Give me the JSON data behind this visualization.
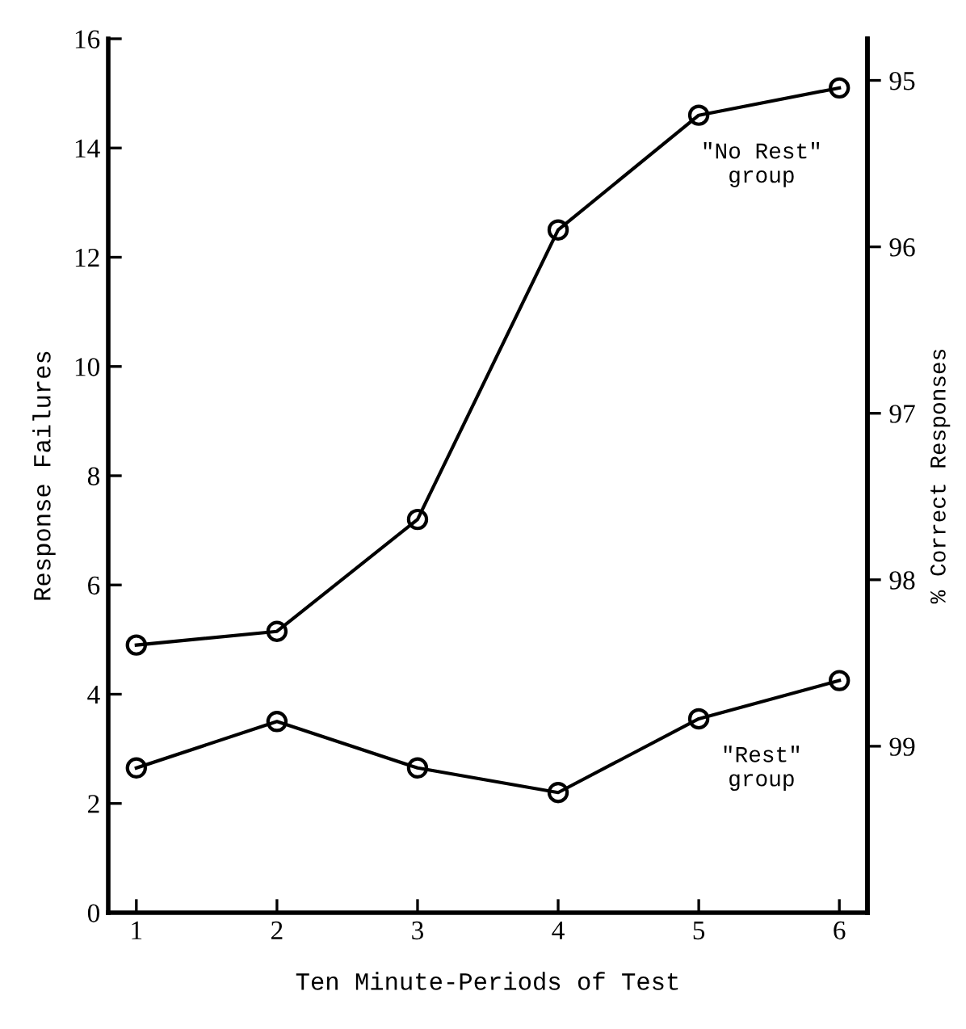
{
  "chart_data": {
    "type": "line",
    "xlabel": "Ten Minute-Periods of Test",
    "ylabel": "Response Failures",
    "y2label": "% Correct Responses",
    "x": [
      1,
      2,
      3,
      4,
      5,
      6
    ],
    "series": [
      {
        "name": "\"No Rest\"\ngroup",
        "color": "#000000",
        "values": [
          4.9,
          5.15,
          7.2,
          12.5,
          14.6,
          15.1
        ]
      },
      {
        "name": "\"Rest\"\ngroup",
        "color": "#000000",
        "values": [
          2.65,
          3.5,
          2.65,
          2.2,
          3.55,
          4.25
        ]
      }
    ],
    "xlim": [
      0.8,
      6.2
    ],
    "xticks": [
      1,
      2,
      3,
      4,
      5,
      6
    ],
    "ylim": [
      0,
      16
    ],
    "yticks": [
      0,
      2,
      4,
      6,
      8,
      10,
      12,
      14,
      16
    ],
    "y2lim": [
      100,
      94.75
    ],
    "y2ticks": [
      95,
      96,
      97,
      98,
      99
    ],
    "marker": "circle",
    "line_style": "solid",
    "grid": false,
    "legend": false
  }
}
